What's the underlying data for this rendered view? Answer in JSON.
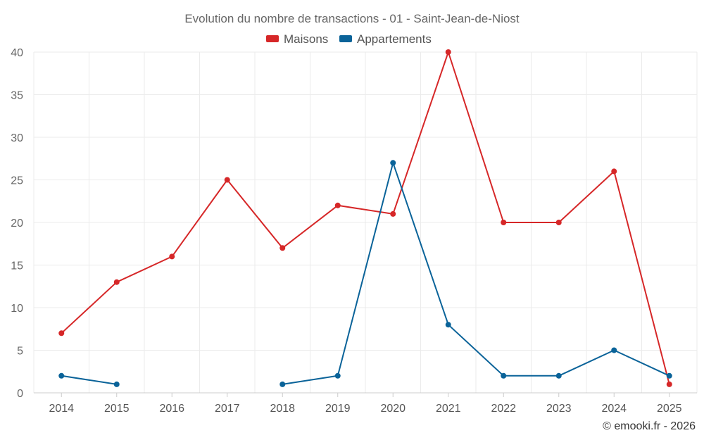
{
  "chart_data": {
    "type": "line",
    "title": "Evolution du nombre de transactions - 01 - Saint-Jean-de-Niost",
    "categories": [
      "2014",
      "2015",
      "2016",
      "2017",
      "2018",
      "2019",
      "2020",
      "2021",
      "2022",
      "2023",
      "2024",
      "2025"
    ],
    "series": [
      {
        "name": "Maisons",
        "color": "#d62728",
        "values": [
          7,
          13,
          16,
          25,
          17,
          22,
          21,
          40,
          20,
          20,
          26,
          1
        ]
      },
      {
        "name": "Appartements",
        "color": "#0a6399",
        "values": [
          2,
          1,
          null,
          null,
          1,
          2,
          27,
          8,
          2,
          2,
          5,
          2
        ]
      }
    ],
    "yticks": [
      "0",
      "5",
      "10",
      "15",
      "20",
      "25",
      "30",
      "35",
      "40"
    ],
    "ylim": [
      0,
      40
    ],
    "xlabel": "",
    "ylabel": "",
    "grid": true,
    "legend_position": "top-center"
  },
  "credit": "© emooki.fr - 2026"
}
